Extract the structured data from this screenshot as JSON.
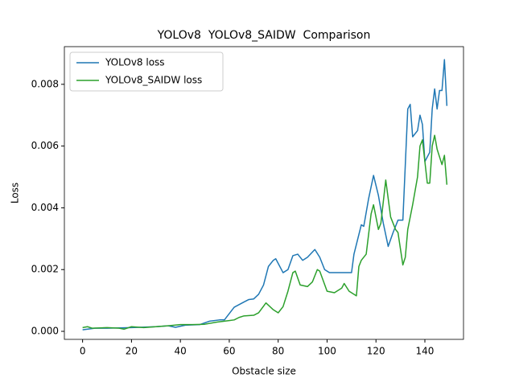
{
  "chart_data": {
    "type": "line",
    "title": "YOLOv8  YOLOv8_SAIDW  Comparison",
    "x_label": "Obstacle size",
    "y_label": "Loss",
    "xlim": [
      -7.45,
      155.8
    ],
    "ylim": [
      -0.00026,
      0.00922
    ],
    "xticks": [
      0,
      20,
      40,
      60,
      80,
      100,
      120,
      140
    ],
    "yticks": [
      {
        "value": 0,
        "label": "0.000"
      },
      {
        "value": 0.002,
        "label": "0.002"
      },
      {
        "value": 0.004,
        "label": "0.004"
      },
      {
        "value": 0.006,
        "label": "0.006"
      },
      {
        "value": 0.008,
        "label": "0.008"
      }
    ],
    "legend": "upper left",
    "series": [
      {
        "name": "YOLOv8 loss",
        "color": "#1f77b4",
        "x": [
          0,
          5,
          10,
          20,
          30,
          35,
          38,
          42,
          48,
          52,
          56,
          58,
          62,
          66,
          68,
          70,
          72,
          74,
          76,
          78,
          79,
          82,
          84,
          86,
          88,
          90,
          92,
          95,
          97,
          99,
          101,
          105,
          110,
          111,
          114,
          115,
          117,
          119,
          121,
          123,
          125,
          127,
          129,
          131,
          133,
          134,
          135,
          137,
          138,
          139,
          140,
          142,
          143,
          144,
          145,
          146,
          147,
          148,
          149
        ],
        "values": [
          5e-05,
          0.0001,
          0.0001,
          0.00012,
          0.00015,
          0.00018,
          0.00013,
          0.0002,
          0.00022,
          0.00033,
          0.00037,
          0.00037,
          0.00078,
          0.00095,
          0.00103,
          0.00105,
          0.0012,
          0.0015,
          0.0021,
          0.0023,
          0.00235,
          0.0019,
          0.002,
          0.00245,
          0.0025,
          0.0023,
          0.0024,
          0.00265,
          0.0024,
          0.002,
          0.0019,
          0.0019,
          0.0019,
          0.0025,
          0.00345,
          0.0034,
          0.0043,
          0.00505,
          0.0044,
          0.0035,
          0.00275,
          0.0032,
          0.0036,
          0.0036,
          0.0072,
          0.00735,
          0.0063,
          0.0065,
          0.007,
          0.0067,
          0.0055,
          0.0058,
          0.0072,
          0.00785,
          0.0072,
          0.0078,
          0.0078,
          0.0088,
          0.0073
        ]
      },
      {
        "name": "YOLOv8_SAIDW loss",
        "color": "#2ca02c",
        "x": [
          0,
          2,
          4,
          10,
          15,
          17,
          20,
          25,
          30,
          35,
          40,
          45,
          50,
          55,
          60,
          62,
          64,
          66,
          70,
          72,
          75,
          78,
          80,
          82,
          84,
          86,
          87,
          89,
          92,
          94,
          96,
          97,
          100,
          103,
          106,
          107,
          109,
          112,
          113,
          114,
          116,
          118,
          119,
          121,
          122,
          124,
          126,
          128,
          129,
          131,
          132,
          133,
          135,
          137,
          138,
          139,
          141,
          142,
          143,
          144,
          145,
          147,
          148,
          149
        ],
        "values": [
          0.00012,
          0.00015,
          0.0001,
          0.00012,
          0.0001,
          7e-05,
          0.00015,
          0.00012,
          0.00015,
          0.00018,
          0.00022,
          0.00022,
          0.00023,
          0.0003,
          0.00035,
          0.00037,
          0.00045,
          0.0005,
          0.00052,
          0.0006,
          0.00092,
          0.0007,
          0.0006,
          0.0008,
          0.0013,
          0.0019,
          0.00195,
          0.0015,
          0.00145,
          0.0016,
          0.002,
          0.00195,
          0.0013,
          0.00125,
          0.0014,
          0.00155,
          0.0013,
          0.00115,
          0.0021,
          0.0023,
          0.0025,
          0.0038,
          0.0041,
          0.0033,
          0.0035,
          0.0049,
          0.0037,
          0.0033,
          0.0032,
          0.00215,
          0.0024,
          0.0033,
          0.0041,
          0.005,
          0.006,
          0.0062,
          0.0048,
          0.0048,
          0.006,
          0.00635,
          0.0059,
          0.0054,
          0.0057,
          0.00475
        ]
      }
    ]
  }
}
